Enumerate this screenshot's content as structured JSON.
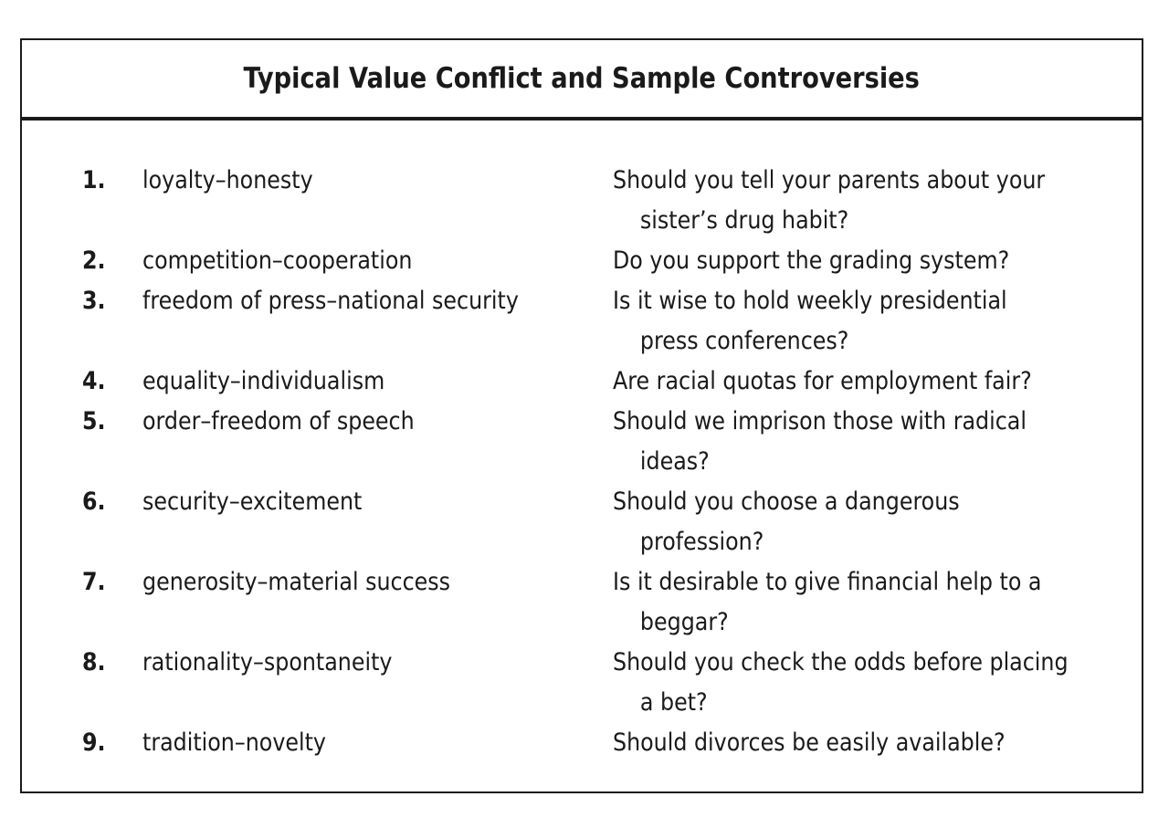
{
  "title": "Typical Value Conflict and Sample Controversies",
  "rows": [
    {
      "num": "1.",
      "conflict": "loyalty–honesty",
      "question": [
        "Should you tell your parents about your",
        "sister’s drug habit?"
      ]
    },
    {
      "num": "2.",
      "conflict": "competition–cooperation",
      "question": [
        "Do you support the grading system?"
      ]
    },
    {
      "num": "3.",
      "conflict": "freedom of press–national security",
      "question": [
        "Is it wise to hold weekly presidential",
        "press conferences?"
      ]
    },
    {
      "num": "4.",
      "conflict": "equality–individualism",
      "question": [
        "Are racial quotas for employment fair?"
      ]
    },
    {
      "num": "5.",
      "conflict": "order–freedom of speech",
      "question": [
        "Should we imprison those with radical",
        "ideas?"
      ]
    },
    {
      "num": "6.",
      "conflict": "security–excitement",
      "question": [
        "Should you choose a dangerous",
        "profession?"
      ]
    },
    {
      "num": "7.",
      "conflict": "generosity–material success",
      "question": [
        "Is it desirable to give financial help to a",
        "beggar?"
      ]
    },
    {
      "num": "8.",
      "conflict": "rationality–spontaneity",
      "question": [
        "Should you check the odds before placing",
        "a bet?"
      ]
    },
    {
      "num": "9.",
      "conflict": "tradition–novelty",
      "question": [
        "Should divorces be easily available?"
      ]
    }
  ]
}
